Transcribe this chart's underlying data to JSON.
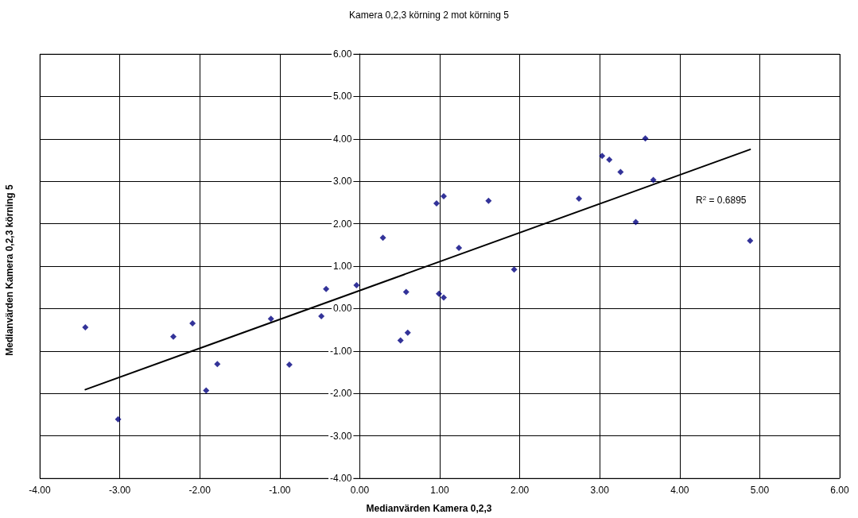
{
  "chart_data": {
    "type": "scatter",
    "title": "Kamera 0,2,3 körning 2 mot körning 5",
    "xlabel": "Medianvärden Kamera 0,2,3",
    "ylabel": "Medianvärden Kamera 0,2,3 körning 5",
    "annotations": [
      "R$^{2}$ = 0.6895"
    ],
    "marker": "diamond",
    "grid": true,
    "xlim": [
      -4,
      6
    ],
    "ylim": [
      -4,
      6
    ],
    "xticks": [
      {
        "value": -4,
        "label": "-4.00"
      },
      {
        "value": -3,
        "label": "-3.00"
      },
      {
        "value": -2,
        "label": "-2.00"
      },
      {
        "value": -1,
        "label": "-1.00"
      },
      {
        "value": 0,
        "label": "0.00"
      },
      {
        "value": 1,
        "label": "1.00"
      },
      {
        "value": 2,
        "label": "2.00"
      },
      {
        "value": 3,
        "label": "3.00"
      },
      {
        "value": 4,
        "label": "4.00"
      },
      {
        "value": 5,
        "label": "5.00"
      },
      {
        "value": 6,
        "label": "6.00"
      }
    ],
    "yticks": [
      {
        "value": -4,
        "label": "-4.00"
      },
      {
        "value": -3,
        "label": "-3.00"
      },
      {
        "value": -2,
        "label": "-2.00"
      },
      {
        "value": -1,
        "label": "-1.00"
      },
      {
        "value": 0,
        "label": "0.00"
      },
      {
        "value": 1,
        "label": "1.00"
      },
      {
        "value": 2,
        "label": "2.00"
      },
      {
        "value": 3,
        "label": "3.00"
      },
      {
        "value": 4,
        "label": "4.00"
      },
      {
        "value": 5,
        "label": "5.00"
      },
      {
        "value": 6,
        "label": "6.00"
      }
    ],
    "series": [
      {
        "color": "#000080",
        "x": [
          -3.43,
          -3.02,
          -2.33,
          -2.09,
          -1.92,
          -1.78,
          -1.11,
          -0.88,
          -0.48,
          -0.42,
          -0.04,
          0.29,
          0.51,
          0.58,
          0.6,
          0.96,
          0.99,
          1.05,
          1.05,
          1.24,
          1.61,
          1.93,
          2.74,
          3.03,
          3.12,
          3.26,
          3.45,
          3.57,
          3.67,
          4.88
        ],
        "values": [
          -0.44,
          -2.61,
          -0.66,
          -0.35,
          -1.93,
          -1.31,
          -0.24,
          -1.32,
          -0.18,
          0.46,
          0.55,
          1.67,
          -0.75,
          0.39,
          -0.57,
          2.48,
          0.35,
          2.65,
          0.26,
          1.43,
          2.54,
          0.92,
          2.59,
          3.6,
          3.51,
          3.22,
          2.04,
          4.01,
          3.03,
          1.6
        ]
      },
      {
        "type": "line",
        "color": "#000000",
        "marker": "none",
        "x": [
          -3.43,
          4.88
        ],
        "values": [
          -1.91,
          3.75
        ]
      }
    ]
  }
}
